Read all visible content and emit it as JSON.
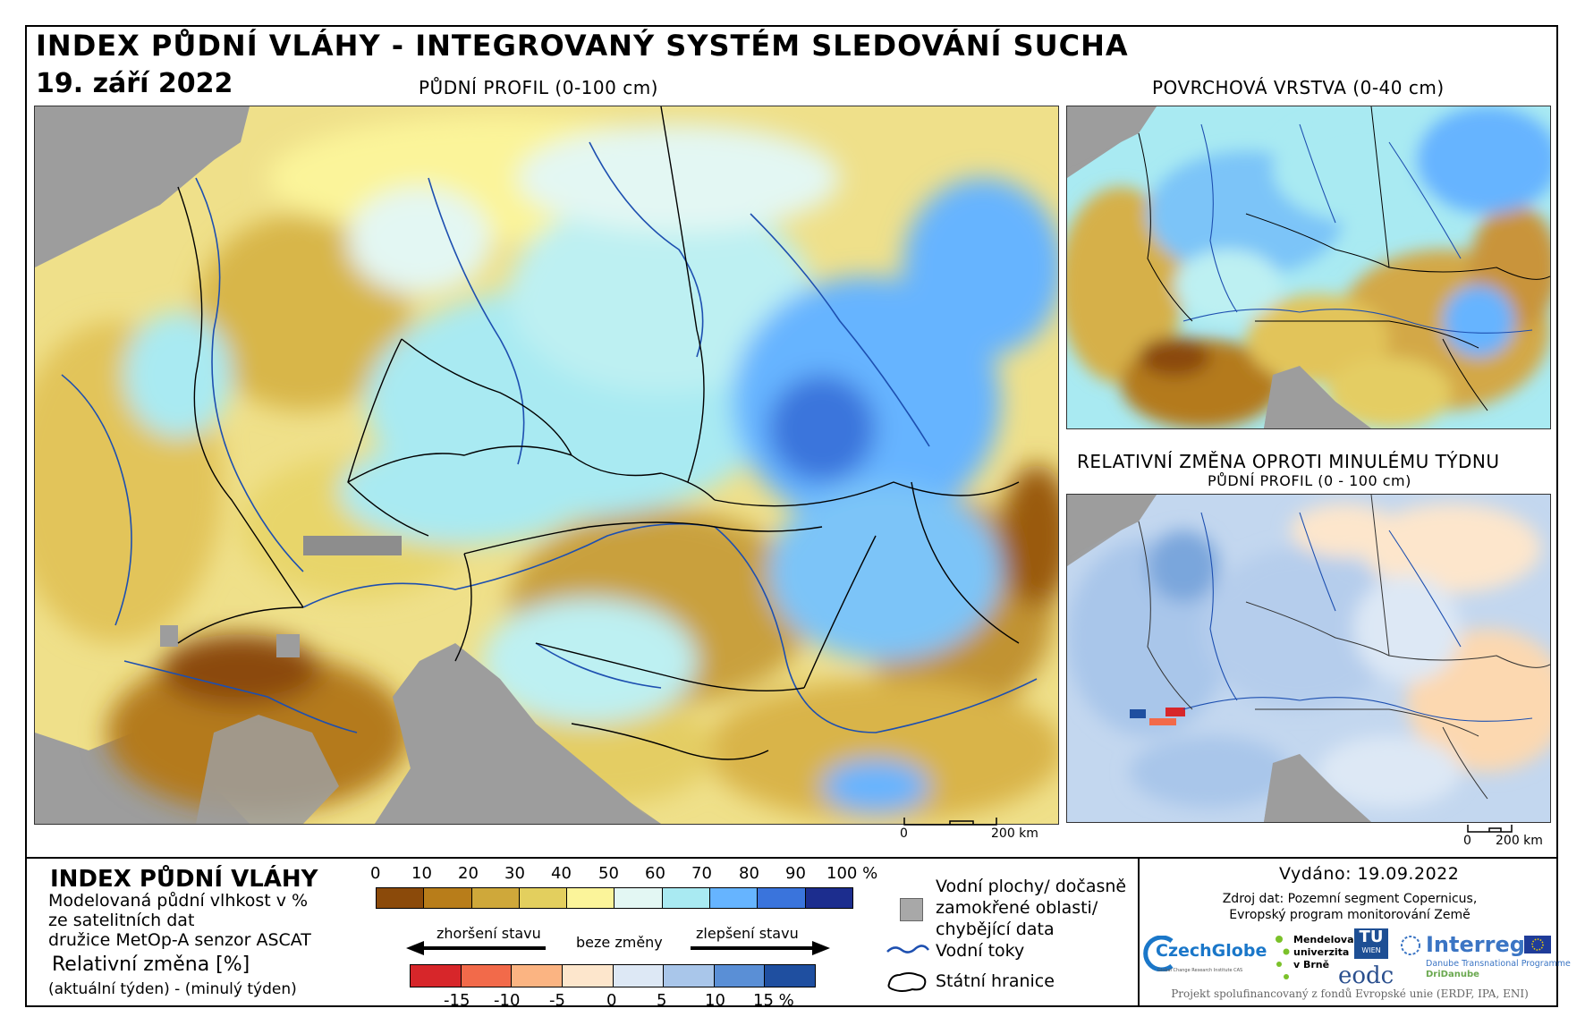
{
  "header": {
    "title": "INDEX PŮDNÍ VLÁHY - INTEGROVANÝ SYSTÉM SLEDOVÁNÍ SUCHA",
    "date": "19. září 2022"
  },
  "maps": {
    "main_label": "PŮDNÍ PROFIL (0-100 cm)",
    "surface_label": "POVRCHOVÁ VRSTVA (0-40 cm)",
    "change_label": "RELATIVNÍ ZMĚNA OPROTI MINULÉMU TÝDNU",
    "change_sublabel": "PŮDNÍ PROFIL (0 - 100 cm)",
    "scale_zero": "0",
    "scale_main": "200 km",
    "scale_small": "200 km"
  },
  "legend": {
    "title": "INDEX PŮDNÍ VLÁHY",
    "desc1": "Modelovaná půdní vlhkost v %",
    "desc2": "ze satelitních dat",
    "desc3": "družice MetOp-A senzor ASCAT",
    "rel_title": "Relativní změna [%]",
    "rel_desc": "(aktuální týden) - (minulý týden)",
    "index_ticks": [
      "0",
      "10",
      "20",
      "30",
      "40",
      "50",
      "60",
      "70",
      "80",
      "90",
      "100 %"
    ],
    "index_colors": [
      "#8b4a0a",
      "#b87d1a",
      "#cfa83a",
      "#e3cf5e",
      "#fbf49a",
      "#e3f7f3",
      "#a9eaf2",
      "#66b4ff",
      "#3a74dc",
      "#1c2d8e"
    ],
    "worse_label": "zhoršení stavu",
    "nochange_label": "beze změny",
    "better_label": "zlepšení stavu",
    "change_ticks": [
      "-15",
      "-10",
      "-5",
      "0",
      "5",
      "10",
      "15 %"
    ],
    "change_colors": [
      "#d7262a",
      "#f26a4a",
      "#fbb482",
      "#fde6cc",
      "#dde8f5",
      "#a9c6ea",
      "#5a8fd6",
      "#1f4fa0"
    ],
    "water_bodies": [
      "Vodní plochy/ dočasně",
      "zamokřené oblasti/",
      "chybějící data"
    ],
    "rivers": "Vodní toky",
    "borders": "Státní hranice"
  },
  "info": {
    "issued": "Vydáno: 19.09.2022",
    "source1": "Zdroj dat: Pozemní segment Copernicus,",
    "source2": "Evropský program monitorování Země",
    "funded": "Projekt spolufinancovaný z fondů Evropské unie (ERDF, IPA, ENI)",
    "logos": {
      "czechglobe": "CzechGlobe",
      "czechglobe_sub": "Global Change Research Institute CAS",
      "mendelu1": "Mendelova",
      "mendelu2": "univerzita",
      "mendelu3": "v Brně",
      "tu": "TU",
      "tu_sub": "WIEN",
      "eodc": "eodc",
      "interreg": "Interreg",
      "interreg_sub": "Danube Transnational Programme",
      "dridanube": "DriDanube"
    }
  }
}
